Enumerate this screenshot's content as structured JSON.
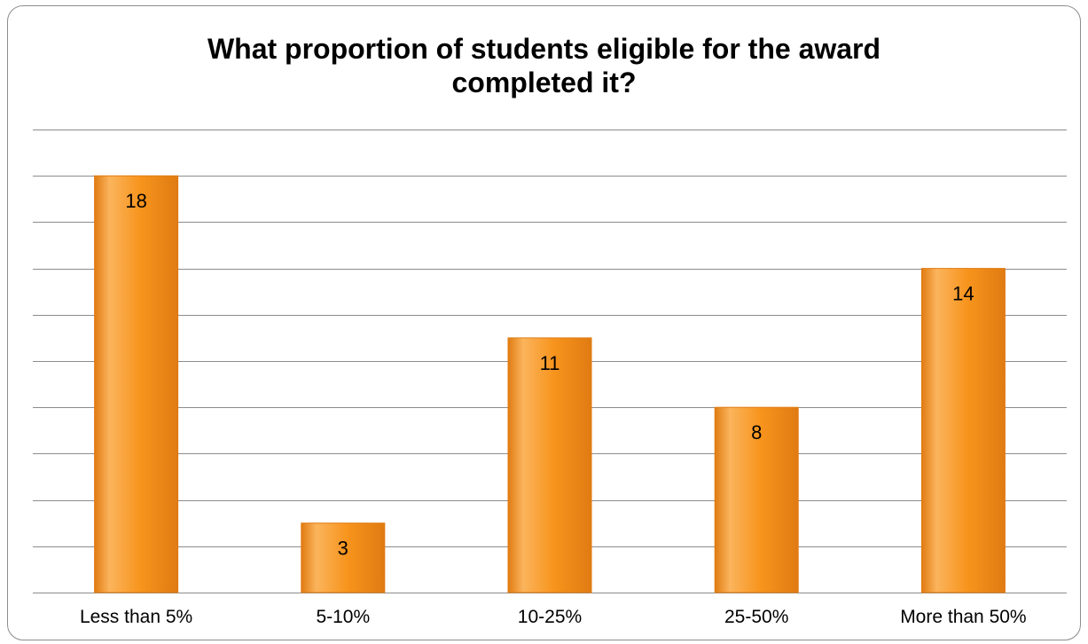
{
  "chart_data": {
    "type": "bar",
    "title": "What proportion of students eligible for the award completed it?",
    "title_lines": [
      "What proportion of students eligible for the award",
      "completed it?"
    ],
    "categories": [
      "Less than 5%",
      "5-10%",
      "10-25%",
      "25-50%",
      "More than 50%"
    ],
    "values": [
      18,
      3,
      11,
      8,
      14
    ],
    "data_labels": [
      "18",
      "3",
      "11",
      "8",
      "14"
    ],
    "ylim": [
      0,
      20
    ],
    "y_grid_step": 2,
    "grid": true,
    "legend": "none",
    "bar_color": "#f7941d",
    "bar_color_light": "#fbb45c",
    "bar_color_dark": "#e07b12",
    "grid_color": "#8c8c8c"
  }
}
